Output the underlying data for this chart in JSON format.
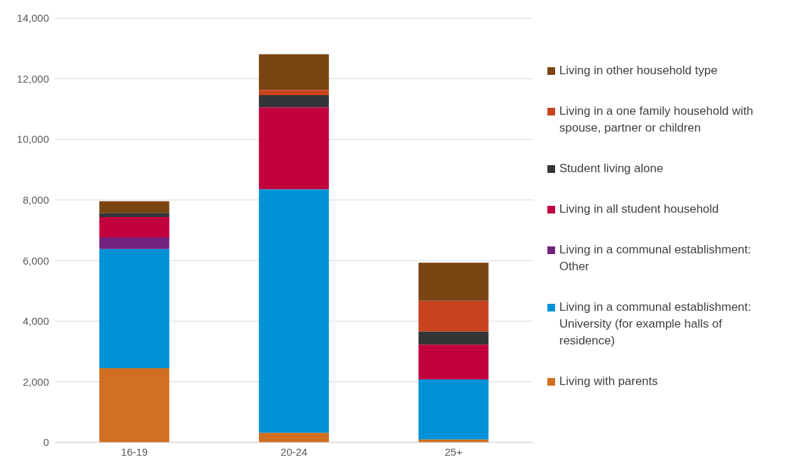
{
  "chart_data": {
    "type": "bar",
    "stacked": true,
    "categories": [
      "16-19",
      "20-24",
      "25+"
    ],
    "series": [
      {
        "name": "Living with parents",
        "color": "#d07020",
        "values": [
          2450,
          320,
          100
        ]
      },
      {
        "name": "Living in a communal establishment: University (for example halls of residence)",
        "color": "#0092d6",
        "values": [
          3930,
          8040,
          1980
        ]
      },
      {
        "name": "Living in a communal establishment: Other",
        "color": "#74237f",
        "values": [
          390,
          0,
          0
        ]
      },
      {
        "name": "Living in all student household",
        "color": "#c2003c",
        "values": [
          670,
          2700,
          1150
        ]
      },
      {
        "name": "Student living alone",
        "color": "#333537",
        "values": [
          130,
          400,
          430
        ]
      },
      {
        "name": "Living in a one family household with spouse, partner or children",
        "color": "#c8441f",
        "values": [
          0,
          180,
          1010
        ]
      },
      {
        "name": "Living in other household type",
        "color": "#7a4513",
        "values": [
          390,
          1170,
          1260
        ]
      }
    ],
    "ylim": [
      0,
      14000
    ],
    "yticks": [
      0,
      {
        "value": 2000,
        "label": "2,000"
      },
      {
        "value": 4000,
        "label": "4,000"
      },
      {
        "value": 6000,
        "label": "6,000"
      },
      {
        "value": 8000,
        "label": "8,000"
      },
      {
        "value": 10000,
        "label": "10,000"
      },
      {
        "value": 12000,
        "label": "12,000"
      },
      {
        "value": 14000,
        "label": "14,000"
      }
    ],
    "grid": "y",
    "legend": "right"
  }
}
